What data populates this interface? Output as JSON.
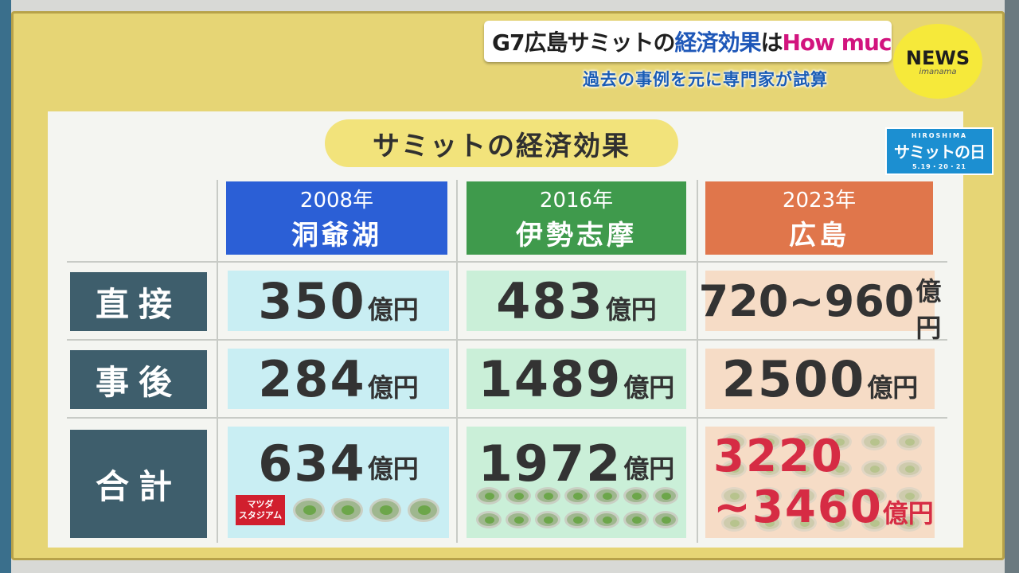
{
  "header": {
    "headline_part1": "G7広島サミットの",
    "headline_part2": "経済効果",
    "headline_part3": "は",
    "headline_part4": "How much?",
    "subheadline": "過去の事例を元に専門家が試算",
    "news_badge": "NEWS",
    "news_badge_sub": "imanama"
  },
  "logo": {
    "top": "HIROSHIMA",
    "main": "サミットの日",
    "dates": "5.19・20・21"
  },
  "board": {
    "title": "サミットの経済効果",
    "columns": [
      {
        "year": "2008年",
        "place": "洞爺湖",
        "color": "#2b5fd6"
      },
      {
        "year": "2016年",
        "place": "伊勢志摩",
        "color": "#3f9a4c"
      },
      {
        "year": "2023年",
        "place": "広島",
        "color": "#e0764b"
      }
    ],
    "rows": [
      {
        "label": "直接",
        "values": [
          "350",
          "483",
          "720~960"
        ]
      },
      {
        "label": "事後",
        "values": [
          "284",
          "1489",
          "2500"
        ]
      },
      {
        "label": "合計",
        "values": [
          "634",
          "1972"
        ]
      }
    ],
    "unit": "億円",
    "hiroshima_total_line1": "3220",
    "hiroshima_total_line2": "~3460",
    "stadium_label_line1": "マツダ",
    "stadium_label_line2": "スタジアム"
  },
  "colors": {
    "row_label_bg": "#3e5e6c",
    "cell_blue": "#c9eef3",
    "cell_green": "#caefd8",
    "cell_beige": "#f6dcc6",
    "highlight_red": "#d62c44"
  },
  "icons": [
    "stadium-icon"
  ]
}
